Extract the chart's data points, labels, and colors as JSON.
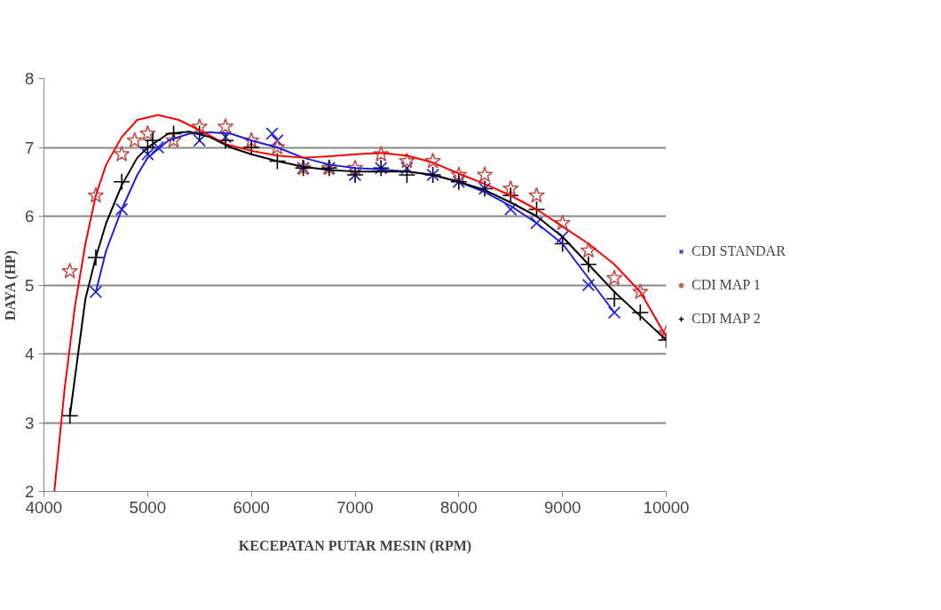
{
  "chart_data": {
    "type": "scatter",
    "xlabel": "KECEPATAN PUTAR MESIN (RPM)",
    "ylabel": "DAYA (HP)",
    "xlim": [
      4000,
      10000
    ],
    "xticks": [
      4000,
      5000,
      6000,
      7000,
      8000,
      9000,
      10000
    ],
    "ylim": [
      2,
      8
    ],
    "yticks": [
      2,
      3,
      4,
      5,
      6,
      7,
      8
    ],
    "grid": "y",
    "legend": "right",
    "series": [
      {
        "name": "CDI STANDAR",
        "color": "#1f1fe0",
        "marker": "x",
        "x": [
          4500,
          4750,
          5000,
          5100,
          5500,
          5750,
          6200,
          6250,
          6500,
          6750,
          7000,
          7250,
          7500,
          7750,
          8000,
          8250,
          8500,
          8750,
          9000,
          9250,
          9500
        ],
        "values": [
          4.9,
          6.1,
          6.9,
          7.0,
          7.1,
          7.15,
          7.2,
          7.1,
          6.7,
          6.7,
          6.6,
          6.7,
          6.7,
          6.6,
          6.5,
          6.4,
          6.1,
          5.9,
          5.7,
          5.0,
          4.6
        ]
      },
      {
        "name": "CDI MAP 1",
        "color": "#c0504d",
        "marker": "star",
        "x": [
          4250,
          4500,
          4750,
          4875,
          5000,
          5250,
          5500,
          5750,
          6000,
          6250,
          6500,
          6750,
          7000,
          7250,
          7500,
          7750,
          8000,
          8250,
          8500,
          8750,
          9000,
          9250,
          9500,
          9750,
          10000
        ],
        "values": [
          5.2,
          6.3,
          6.9,
          7.1,
          7.2,
          7.1,
          7.3,
          7.3,
          7.1,
          7.0,
          6.7,
          6.7,
          6.7,
          6.9,
          6.8,
          6.8,
          6.6,
          6.6,
          6.4,
          6.3,
          5.9,
          5.5,
          5.1,
          4.9,
          4.3
        ]
      },
      {
        "name": "CDI MAP 2",
        "color": "#000000",
        "marker": "cross",
        "x": [
          4250,
          4500,
          4750,
          5000,
          5050,
          5250,
          5500,
          5750,
          6000,
          6250,
          6500,
          6750,
          7000,
          7250,
          7500,
          7750,
          8000,
          8250,
          8500,
          8750,
          9000,
          9250,
          9500,
          9750,
          10000
        ],
        "values": [
          3.1,
          5.4,
          6.5,
          7.0,
          7.1,
          7.2,
          7.2,
          7.1,
          7.0,
          6.8,
          6.7,
          6.7,
          6.6,
          6.7,
          6.6,
          6.6,
          6.5,
          6.4,
          6.3,
          6.1,
          5.6,
          5.3,
          4.8,
          4.6,
          4.2
        ]
      },
      {
        "type": "line",
        "color": "#1f1fe0",
        "x": [
          4500,
          4600,
          4750,
          4900,
          5000,
          5200,
          5400,
          5600,
          5800,
          6000,
          6250,
          6500,
          6750,
          7000,
          7250,
          7500,
          7750,
          8000,
          8250,
          8500,
          8750,
          9000,
          9250,
          9500
        ],
        "values": [
          4.9,
          5.5,
          6.1,
          6.6,
          6.85,
          7.1,
          7.2,
          7.22,
          7.2,
          7.1,
          7.0,
          6.85,
          6.75,
          6.7,
          6.68,
          6.65,
          6.6,
          6.5,
          6.35,
          6.15,
          5.9,
          5.6,
          5.1,
          4.6
        ]
      },
      {
        "type": "line",
        "color": "#ff0000",
        "x": [
          4100,
          4200,
          4300,
          4400,
          4500,
          4600,
          4750,
          4900,
          5100,
          5300,
          5500,
          5750,
          6000,
          6250,
          6500,
          6750,
          7000,
          7250,
          7500,
          7750,
          8000,
          8250,
          8500,
          8750,
          9000,
          9250,
          9500,
          9750,
          10000
        ],
        "values": [
          2.0,
          3.5,
          4.7,
          5.6,
          6.3,
          6.75,
          7.15,
          7.4,
          7.47,
          7.4,
          7.25,
          7.05,
          6.95,
          6.88,
          6.85,
          6.87,
          6.9,
          6.92,
          6.88,
          6.78,
          6.62,
          6.47,
          6.3,
          6.1,
          5.85,
          5.6,
          5.3,
          4.9,
          4.25
        ]
      },
      {
        "type": "line",
        "color": "#000000",
        "x": [
          4250,
          4400,
          4500,
          4600,
          4750,
          4900,
          5000,
          5200,
          5400,
          5600,
          5800,
          6000,
          6250,
          6500,
          6750,
          7000,
          7250,
          7500,
          7750,
          8000,
          8250,
          8500,
          8750,
          9000,
          9250,
          9500,
          9750,
          10000
        ],
        "values": [
          3.1,
          4.8,
          5.4,
          5.9,
          6.45,
          6.85,
          7.0,
          7.2,
          7.23,
          7.15,
          7.0,
          6.9,
          6.8,
          6.72,
          6.67,
          6.65,
          6.65,
          6.65,
          6.6,
          6.5,
          6.38,
          6.2,
          6.0,
          5.7,
          5.3,
          4.9,
          4.55,
          4.2
        ]
      }
    ]
  }
}
